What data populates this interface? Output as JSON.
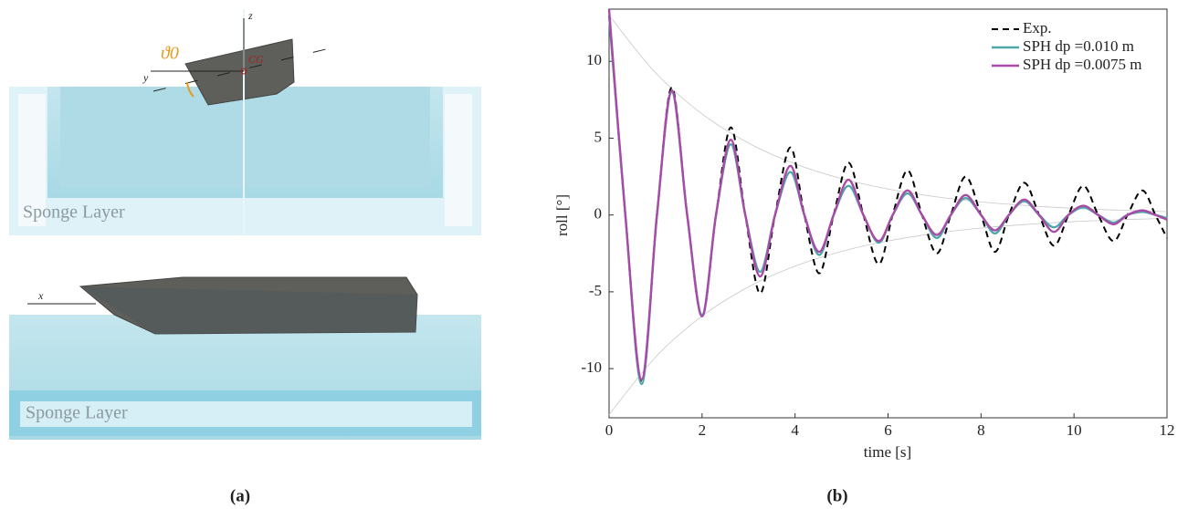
{
  "panel_a": {
    "label": "(a)",
    "sponge_top": "Sponge Layer",
    "sponge_bottom": "Sponge Layer",
    "axis_z": "z",
    "axis_y": "y",
    "axis_x": "x",
    "cg": "CG",
    "angle": "ϑ0"
  },
  "chart_data": {
    "type": "line",
    "label": "(b)",
    "xlabel": "time [s]",
    "ylabel": "roll [°]",
    "xlim": [
      0,
      12
    ],
    "ylim": [
      -13.2,
      13.4
    ],
    "xticks": [
      0,
      2,
      4,
      6,
      8,
      10,
      12
    ],
    "yticks": [
      -10,
      -5,
      0,
      5,
      10
    ],
    "legend": "top-right",
    "x": [
      0,
      0.35,
      0.7,
      1.03,
      1.35,
      1.68,
      2.0,
      2.3,
      2.62,
      2.93,
      3.25,
      3.57,
      3.9,
      4.2,
      4.52,
      4.83,
      5.15,
      5.47,
      5.8,
      6.1,
      6.42,
      6.73,
      7.05,
      7.35,
      7.67,
      8.0,
      8.3,
      8.6,
      8.93,
      9.25,
      9.57,
      9.88,
      10.2,
      10.52,
      10.85,
      11.15,
      11.47,
      11.75,
      12.0
    ],
    "series": [
      {
        "name": "Exp.",
        "color": "#000000",
        "style": "dashed",
        "values": [
          13,
          0,
          -10.8,
          0,
          8.3,
          0,
          -6.6,
          0,
          5.7,
          0,
          -5.1,
          0,
          4.4,
          0,
          -3.8,
          0,
          3.4,
          0,
          -3.2,
          0,
          2.9,
          0,
          -2.5,
          0,
          2.5,
          0,
          -2.4,
          0,
          2.1,
          0,
          -2.0,
          0,
          1.9,
          0,
          -1.7,
          0,
          1.6,
          0,
          -1.5
        ]
      },
      {
        "name": "SPH dp =0.010 m",
        "color": "#4fa8a8",
        "style": "solid",
        "values": [
          13,
          0,
          -11.0,
          0,
          8.0,
          0,
          -6.5,
          0,
          4.6,
          0,
          -3.7,
          0,
          2.8,
          0,
          -2.6,
          0,
          1.9,
          0,
          -1.8,
          0,
          1.4,
          0,
          -1.5,
          0,
          1.1,
          0,
          -1.2,
          0,
          0.9,
          0,
          -0.8,
          0,
          0.5,
          0,
          -0.5,
          0,
          0.2,
          0,
          -0.2
        ]
      },
      {
        "name": "SPH dp =0.0075 m",
        "color": "#a94aa8",
        "style": "solid",
        "values": [
          13.4,
          0,
          -10.7,
          0,
          8.1,
          0,
          -6.6,
          0,
          4.9,
          0,
          -4.0,
          0,
          3.2,
          0,
          -2.4,
          0,
          2.3,
          0,
          -1.7,
          0,
          1.6,
          0,
          -1.3,
          0,
          1.3,
          0,
          -1.0,
          0,
          1.0,
          0,
          -1.1,
          0,
          0.6,
          0,
          -0.6,
          0,
          0.3,
          0,
          -0.3
        ]
      },
      {
        "color": "#c8c8c8",
        "style": "thin",
        "x": [
          0,
          1,
          2,
          3,
          4,
          5,
          6,
          7,
          8,
          9,
          10,
          11,
          12
        ],
        "values": [
          13,
          9.25,
          6.58,
          4.68,
          3.33,
          2.37,
          1.69,
          1.2,
          0.85,
          0.61,
          0.43,
          0.31,
          0.22
        ]
      },
      {
        "color": "#c8c8c8",
        "style": "thin",
        "x": [
          0,
          1,
          2,
          3,
          4,
          5,
          6,
          7,
          8,
          9,
          10,
          11,
          12
        ],
        "values": [
          -13,
          -9.25,
          -6.58,
          -4.68,
          -3.33,
          -2.37,
          -1.69,
          -1.2,
          -0.85,
          -0.61,
          -0.43,
          -0.31,
          -0.22
        ]
      }
    ]
  }
}
